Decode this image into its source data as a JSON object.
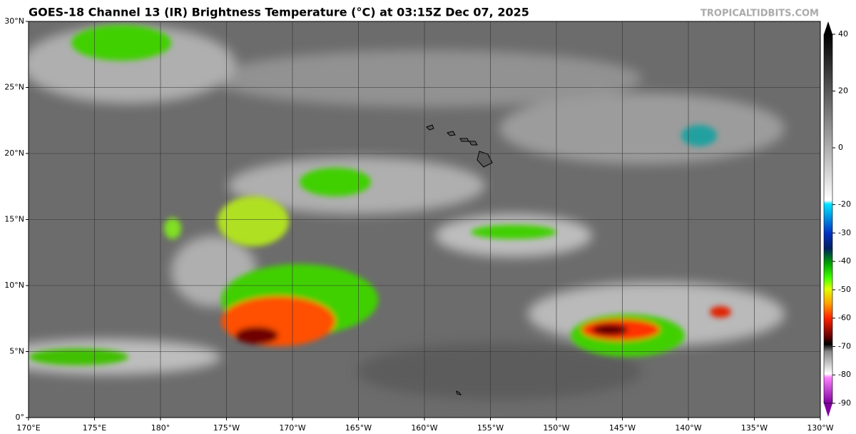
{
  "header": {
    "title": "GOES-18 Channel 13 (IR) Brightness Temperature (°C) at 03:15Z Dec 07, 2025",
    "watermark": "TROPICALTIDBITS.COM"
  },
  "map": {
    "xlim": [
      170,
      230
    ],
    "xticks": [
      {
        "value": 170,
        "label": "170°E"
      },
      {
        "value": 175,
        "label": "175°E"
      },
      {
        "value": 180,
        "label": "180°"
      },
      {
        "value": 185,
        "label": "175°W"
      },
      {
        "value": 190,
        "label": "170°W"
      },
      {
        "value": 195,
        "label": "165°W"
      },
      {
        "value": 200,
        "label": "160°W"
      },
      {
        "value": 205,
        "label": "155°W"
      },
      {
        "value": 210,
        "label": "150°W"
      },
      {
        "value": 215,
        "label": "145°W"
      },
      {
        "value": 220,
        "label": "140°W"
      },
      {
        "value": 225,
        "label": "135°W"
      },
      {
        "value": 230,
        "label": "130°W"
      }
    ],
    "ylim": [
      0,
      30
    ],
    "yticks": [
      {
        "value": 0,
        "label": "0°"
      },
      {
        "value": 5,
        "label": "5°N"
      },
      {
        "value": 10,
        "label": "10°N"
      },
      {
        "value": 15,
        "label": "15°N"
      },
      {
        "value": 20,
        "label": "20°N"
      },
      {
        "value": 25,
        "label": "25°N"
      },
      {
        "value": 30,
        "label": "30°N"
      }
    ],
    "grid": true
  },
  "colorbar": {
    "lim": [
      -90,
      40
    ],
    "ticks": [
      40,
      20,
      0,
      -20,
      -30,
      -40,
      -50,
      -60,
      -70,
      -80,
      -90
    ]
  }
}
